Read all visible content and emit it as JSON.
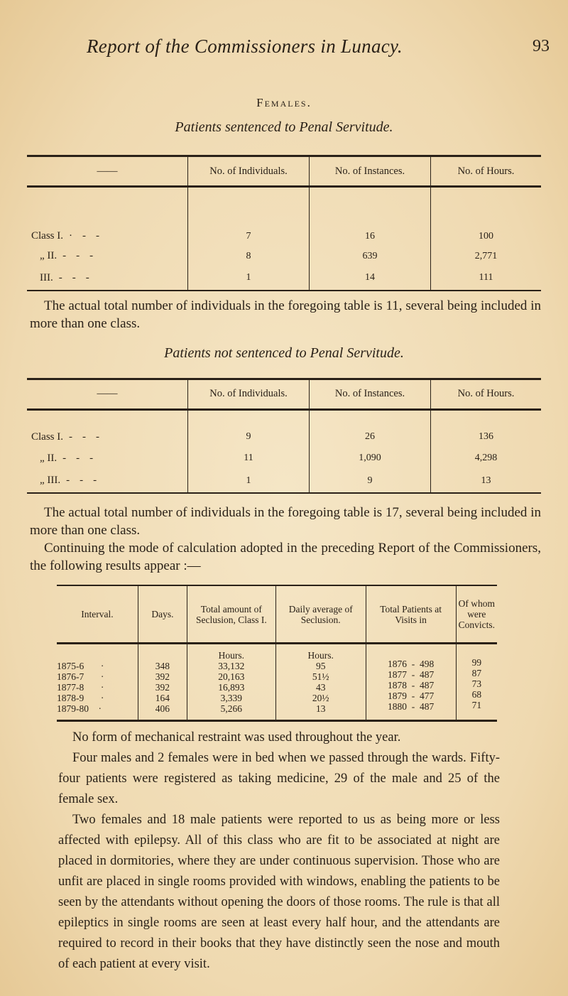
{
  "header": {
    "running_title": "Report of the Commissioners in Lunacy.",
    "page_number": "93"
  },
  "section_title": "Females.",
  "table1": {
    "caption": "Patients sentenced to Penal Servitude.",
    "columns": [
      "——",
      "No. of Individuals.",
      "No. of Instances.",
      "No. of Hours."
    ],
    "rows": [
      {
        "label": "Class I.",
        "individuals": "7",
        "instances": "16",
        "hours": "100"
      },
      {
        "label": "„ II.",
        "individuals": "8",
        "instances": "639",
        "hours": "2,771"
      },
      {
        "label": "III.",
        "individuals": "1",
        "instances": "14",
        "hours": "111"
      }
    ],
    "note": "The actual total number of individuals in the foregoing table is 11, several being included in more than one class."
  },
  "table2": {
    "caption": "Patients not sentenced to Penal Servitude.",
    "columns": [
      "——",
      "No. of Individuals.",
      "No. of Instances.",
      "No. of Hours."
    ],
    "rows": [
      {
        "label": "Class I.",
        "individuals": "9",
        "instances": "26",
        "hours": "136"
      },
      {
        "label": "„ II.",
        "individuals": "11",
        "instances": "1,090",
        "hours": "4,298"
      },
      {
        "label": "„ III.",
        "individuals": "1",
        "instances": "9",
        "hours": "13"
      }
    ],
    "note": "The actual total number of individuals in the foregoing table is 17, several being included in more than one class.",
    "note2": "Continuing the mode of calculation adopted in the preceding Report of the Commissioners, the following results appear :—"
  },
  "table3": {
    "columns": [
      "Interval.",
      "Days.",
      "Total amount of Seclusion, Class I.",
      "Daily average of Seclusion.",
      "Total Patients at Visits in",
      "Of whom were Convicts."
    ],
    "units": {
      "seclusion": "Hours.",
      "average": "Hours."
    },
    "rows": [
      {
        "interval": "1875-6",
        "days": "348",
        "seclusion": "33,132",
        "average": "95",
        "year": "1876",
        "patients": "498",
        "convicts": "99"
      },
      {
        "interval": "1876-7",
        "days": "392",
        "seclusion": "20,163",
        "average": "51½",
        "year": "1877",
        "patients": "487",
        "convicts": "87"
      },
      {
        "interval": "1877-8",
        "days": "392",
        "seclusion": "16,893",
        "average": "43",
        "year": "1878",
        "patients": "487",
        "convicts": "73"
      },
      {
        "interval": "1878-9",
        "days": "164",
        "seclusion": "3,339",
        "average": "20½",
        "year": "1879",
        "patients": "477",
        "convicts": "68"
      },
      {
        "interval": "1879-80",
        "days": "406",
        "seclusion": "5,266",
        "average": "13",
        "year": "1880",
        "patients": "487",
        "convicts": "71"
      }
    ]
  },
  "paragraphs": [
    "No form of mechanical restraint was used throughout the year.",
    "Four males and 2 females were in bed when we passed through the wards. Fifty-four patients were registered as taking medicine, 29 of the male and 25 of the female sex.",
    "Two females and 18 male patients were reported to us as being more or less affected with epilepsy. All of this class who are fit to be associated at night are placed in dormitories, where they are under continuous supervision. Those who are unfit are placed in single rooms provided with windows, enabling the patients to be seen by the attendants without opening the doors of those rooms. The rule is that all epileptics in single rooms are seen at least every half hour, and the attendants are required to record in their books that they have distinctly seen the nose and mouth of each patient at every visit."
  ]
}
